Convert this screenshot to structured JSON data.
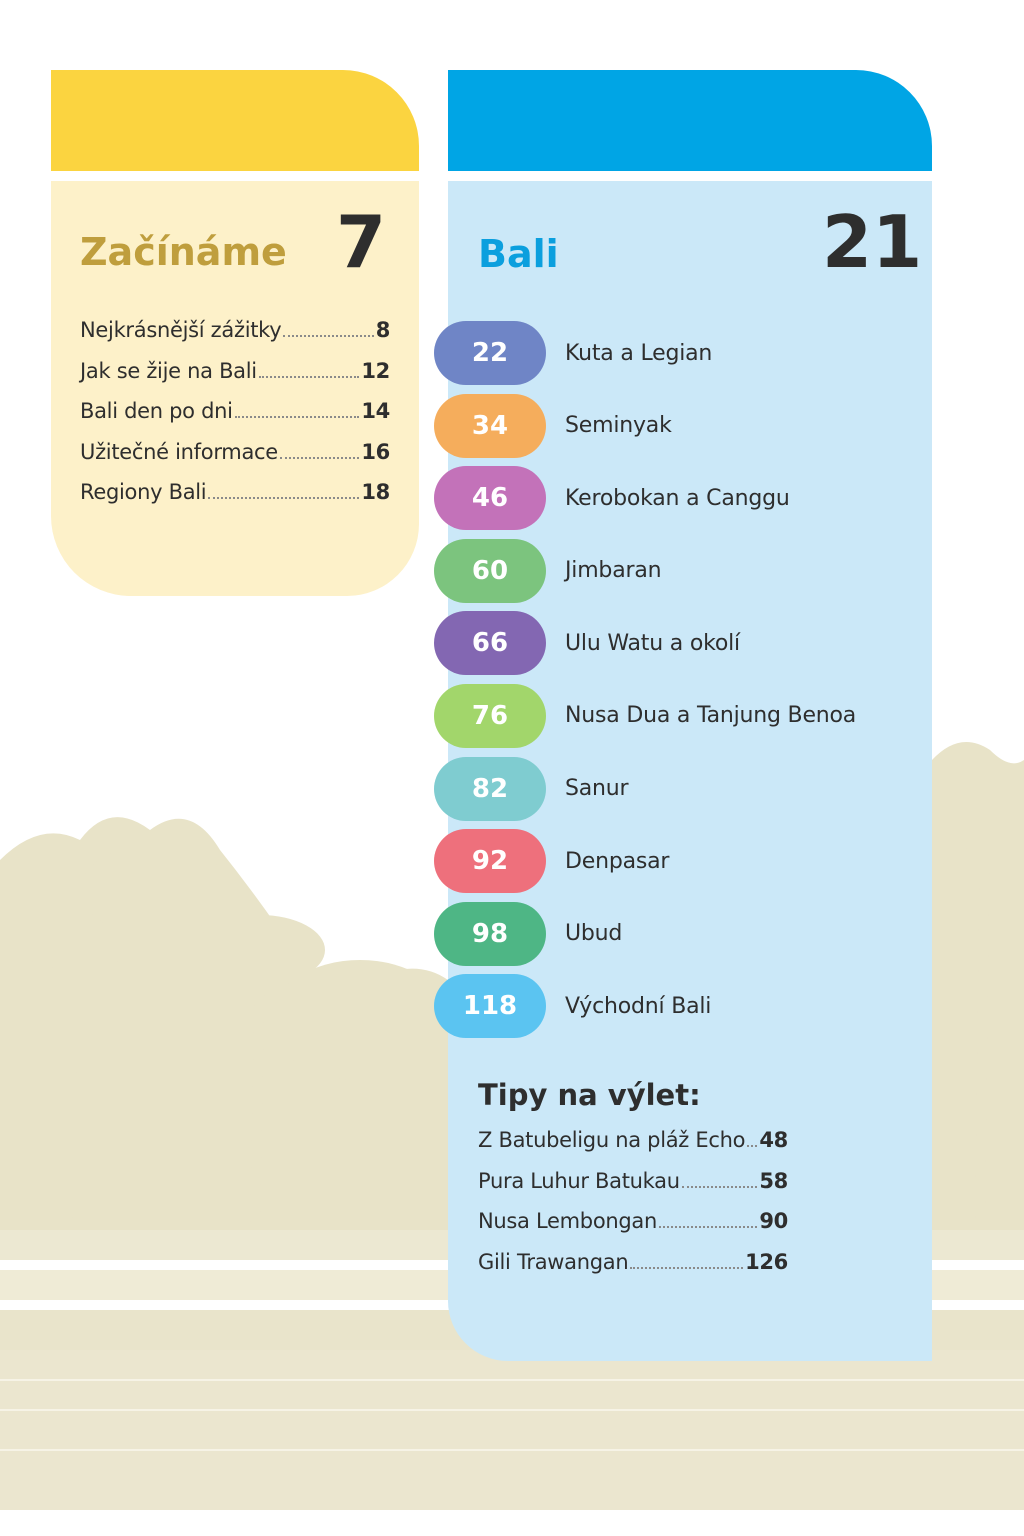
{
  "colors": {
    "left_header": "#fbd440",
    "left_body": "#fdf1c9",
    "right_header": "#00a5e5",
    "right_body": "#cbe8f8",
    "left_title": "#bf9e3d",
    "right_title": "#0b9fde"
  },
  "left_section": {
    "title": "Začínáme",
    "page": "7",
    "items": [
      {
        "label": "Nejkrásnější zážitky",
        "page": "8"
      },
      {
        "label": "Jak se žije na Bali",
        "page": "12"
      },
      {
        "label": "Bali den po dni",
        "page": "14"
      },
      {
        "label": "Užitečné informace",
        "page": "16"
      },
      {
        "label": "Regiony Bali",
        "page": "18"
      }
    ]
  },
  "right_section": {
    "title": "Bali",
    "page": "21",
    "chapters": [
      {
        "page": "22",
        "label": "Kuta a Legian",
        "color": "#6f85c6"
      },
      {
        "page": "34",
        "label": "Seminyak",
        "color": "#f5ad5c"
      },
      {
        "page": "46",
        "label": "Kerobokan a Canggu",
        "color": "#c372b9"
      },
      {
        "page": "60",
        "label": "Jimbaran",
        "color": "#7cc47e"
      },
      {
        "page": "66",
        "label": "Ulu Watu a okolí",
        "color": "#8367b2"
      },
      {
        "page": "76",
        "label": "Nusa Dua a Tanjung Benoa",
        "color": "#a2d66b"
      },
      {
        "page": "82",
        "label": "Sanur",
        "color": "#7fccd0"
      },
      {
        "page": "92",
        "label": "Denpasar",
        "color": "#ee707c"
      },
      {
        "page": "98",
        "label": "Ubud",
        "color": "#4eb685"
      },
      {
        "page": "118",
        "label": "Východní Bali",
        "color": "#5bc4f1"
      }
    ],
    "tips_title": "Tipy na výlet:",
    "tips": [
      {
        "label": "Z Batubeligu na pláž Echo",
        "page": "48"
      },
      {
        "label": "Pura Luhur Batukau",
        "page": "58"
      },
      {
        "label": "Nusa Lembongan",
        "page": "90"
      },
      {
        "label": "Gili Trawangan",
        "page": "126"
      }
    ]
  }
}
